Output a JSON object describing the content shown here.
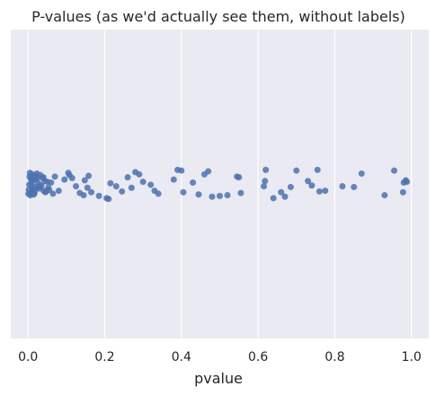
{
  "chart_data": {
    "type": "scatter",
    "title": "P-values (as we'd actually see them, without labels)",
    "xlabel": "pvalue",
    "ylabel": "",
    "xlim": [
      -0.045,
      1.045
    ],
    "xticks": [
      0.0,
      0.2,
      0.4,
      0.6,
      0.8,
      1.0
    ],
    "xtick_labels": [
      "0.0",
      "0.2",
      "0.4",
      "0.6",
      "0.8",
      "1.0"
    ],
    "grid": true,
    "background_color": "#eaeaf2",
    "grid_color": "#ffffff",
    "point_color": "#4c72b0",
    "point_opacity": 0.85,
    "points": [
      {
        "x": 0.001,
        "jitter": -0.13
      },
      {
        "x": 0.002,
        "jitter": -0.08
      },
      {
        "x": 0.003,
        "jitter": -0.01
      },
      {
        "x": 0.004,
        "jitter": 0.1
      },
      {
        "x": 0.005,
        "jitter": 0.15
      },
      {
        "x": 0.006,
        "jitter": -0.15
      },
      {
        "x": 0.007,
        "jitter": 0.07
      },
      {
        "x": 0.008,
        "jitter": -0.11
      },
      {
        "x": 0.009,
        "jitter": 0.02
      },
      {
        "x": 0.01,
        "jitter": -0.03
      },
      {
        "x": 0.011,
        "jitter": 0.13
      },
      {
        "x": 0.012,
        "jitter": -0.07
      },
      {
        "x": 0.014,
        "jitter": 0.05
      },
      {
        "x": 0.015,
        "jitter": -0.14
      },
      {
        "x": 0.017,
        "jitter": -0.12
      },
      {
        "x": 0.018,
        "jitter": 0.11
      },
      {
        "x": 0.019,
        "jitter": -0.04
      },
      {
        "x": 0.021,
        "jitter": 0.06
      },
      {
        "x": 0.023,
        "jitter": 0.14
      },
      {
        "x": 0.025,
        "jitter": 0.09
      },
      {
        "x": 0.027,
        "jitter": 0.01
      },
      {
        "x": 0.029,
        "jitter": -0.06
      },
      {
        "x": 0.032,
        "jitter": 0.12
      },
      {
        "x": 0.035,
        "jitter": -0.02
      },
      {
        "x": 0.038,
        "jitter": 0.08
      },
      {
        "x": 0.041,
        "jitter": -0.09
      },
      {
        "x": 0.044,
        "jitter": 0.04
      },
      {
        "x": 0.047,
        "jitter": -0.1
      },
      {
        "x": 0.05,
        "jitter": 0.03
      },
      {
        "x": 0.053,
        "jitter": -0.05
      },
      {
        "x": 0.02,
        "jitter": -0.07
      },
      {
        "x": 0.03,
        "jitter": -0.03
      },
      {
        "x": 0.04,
        "jitter": 0.09
      },
      {
        "x": 0.045,
        "jitter": -0.11
      },
      {
        "x": 0.055,
        "jitter": -0.08
      },
      {
        "x": 0.06,
        "jitter": 0.02
      },
      {
        "x": 0.065,
        "jitter": -0.13
      },
      {
        "x": 0.07,
        "jitter": 0.1
      },
      {
        "x": 0.08,
        "jitter": -0.09
      },
      {
        "x": 0.095,
        "jitter": 0.06
      },
      {
        "x": 0.105,
        "jitter": 0.15
      },
      {
        "x": 0.108,
        "jitter": 0.12
      },
      {
        "x": 0.115,
        "jitter": 0.08
      },
      {
        "x": 0.125,
        "jitter": -0.03
      },
      {
        "x": 0.135,
        "jitter": -0.12
      },
      {
        "x": 0.145,
        "jitter": -0.15
      },
      {
        "x": 0.148,
        "jitter": 0.05
      },
      {
        "x": 0.155,
        "jitter": -0.05
      },
      {
        "x": 0.158,
        "jitter": 0.11
      },
      {
        "x": 0.165,
        "jitter": -0.11
      },
      {
        "x": 0.185,
        "jitter": -0.16
      },
      {
        "x": 0.205,
        "jitter": -0.19
      },
      {
        "x": 0.21,
        "jitter": -0.2
      },
      {
        "x": 0.215,
        "jitter": 0.01
      },
      {
        "x": 0.23,
        "jitter": -0.03
      },
      {
        "x": 0.245,
        "jitter": -0.1
      },
      {
        "x": 0.26,
        "jitter": 0.09
      },
      {
        "x": 0.27,
        "jitter": -0.05
      },
      {
        "x": 0.28,
        "jitter": 0.16
      },
      {
        "x": 0.29,
        "jitter": 0.13
      },
      {
        "x": 0.3,
        "jitter": 0.03
      },
      {
        "x": 0.32,
        "jitter": -0.01
      },
      {
        "x": 0.33,
        "jitter": -0.09
      },
      {
        "x": 0.34,
        "jitter": -0.13
      },
      {
        "x": 0.38,
        "jitter": 0.06
      },
      {
        "x": 0.39,
        "jitter": 0.19
      },
      {
        "x": 0.4,
        "jitter": 0.18
      },
      {
        "x": 0.405,
        "jitter": -0.11
      },
      {
        "x": 0.43,
        "jitter": 0.02
      },
      {
        "x": 0.445,
        "jitter": -0.14
      },
      {
        "x": 0.46,
        "jitter": 0.13
      },
      {
        "x": 0.47,
        "jitter": 0.17
      },
      {
        "x": 0.48,
        "jitter": -0.17
      },
      {
        "x": 0.5,
        "jitter": -0.16
      },
      {
        "x": 0.52,
        "jitter": -0.15
      },
      {
        "x": 0.545,
        "jitter": 0.1
      },
      {
        "x": 0.55,
        "jitter": 0.09
      },
      {
        "x": 0.555,
        "jitter": -0.12
      },
      {
        "x": 0.615,
        "jitter": -0.03
      },
      {
        "x": 0.618,
        "jitter": 0.04
      },
      {
        "x": 0.62,
        "jitter": 0.19
      },
      {
        "x": 0.64,
        "jitter": -0.19
      },
      {
        "x": 0.66,
        "jitter": -0.11
      },
      {
        "x": 0.67,
        "jitter": -0.17
      },
      {
        "x": 0.685,
        "jitter": -0.04
      },
      {
        "x": 0.7,
        "jitter": 0.18
      },
      {
        "x": 0.73,
        "jitter": 0.04
      },
      {
        "x": 0.74,
        "jitter": -0.02
      },
      {
        "x": 0.755,
        "jitter": 0.19
      },
      {
        "x": 0.76,
        "jitter": -0.1
      },
      {
        "x": 0.775,
        "jitter": -0.09
      },
      {
        "x": 0.82,
        "jitter": -0.03
      },
      {
        "x": 0.85,
        "jitter": -0.04
      },
      {
        "x": 0.87,
        "jitter": 0.14
      },
      {
        "x": 0.93,
        "jitter": -0.15
      },
      {
        "x": 0.955,
        "jitter": 0.18
      },
      {
        "x": 0.978,
        "jitter": -0.11
      },
      {
        "x": 0.98,
        "jitter": 0.02
      },
      {
        "x": 0.985,
        "jitter": 0.05
      },
      {
        "x": 0.988,
        "jitter": 0.03
      }
    ]
  }
}
